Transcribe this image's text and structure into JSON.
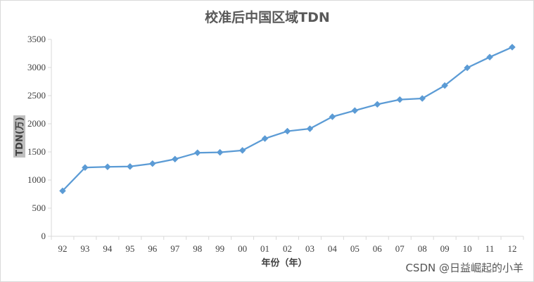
{
  "chart_data": {
    "type": "line",
    "title": "校准后中国区域TDN",
    "xlabel": "年份（年）",
    "ylabel": "TDN(万)",
    "categories": [
      "92",
      "93",
      "94",
      "95",
      "96",
      "97",
      "98",
      "99",
      "00",
      "01",
      "02",
      "03",
      "04",
      "05",
      "06",
      "07",
      "08",
      "09",
      "10",
      "11",
      "12"
    ],
    "series": [
      {
        "values": [
          808,
          1222,
          1235,
          1240,
          1292,
          1372,
          1485,
          1492,
          1527,
          1737,
          1868,
          1912,
          2125,
          2235,
          2345,
          2430,
          2450,
          2680,
          2995,
          3185,
          3362
        ]
      }
    ],
    "yticks": [
      0,
      500,
      1000,
      1500,
      2000,
      2500,
      3000,
      3500
    ],
    "ylim": [
      0,
      3500
    ],
    "grid": false,
    "legend": "none",
    "line_color": "#5b9bd5"
  },
  "watermark": "CSDN @日益崛起的小羊"
}
